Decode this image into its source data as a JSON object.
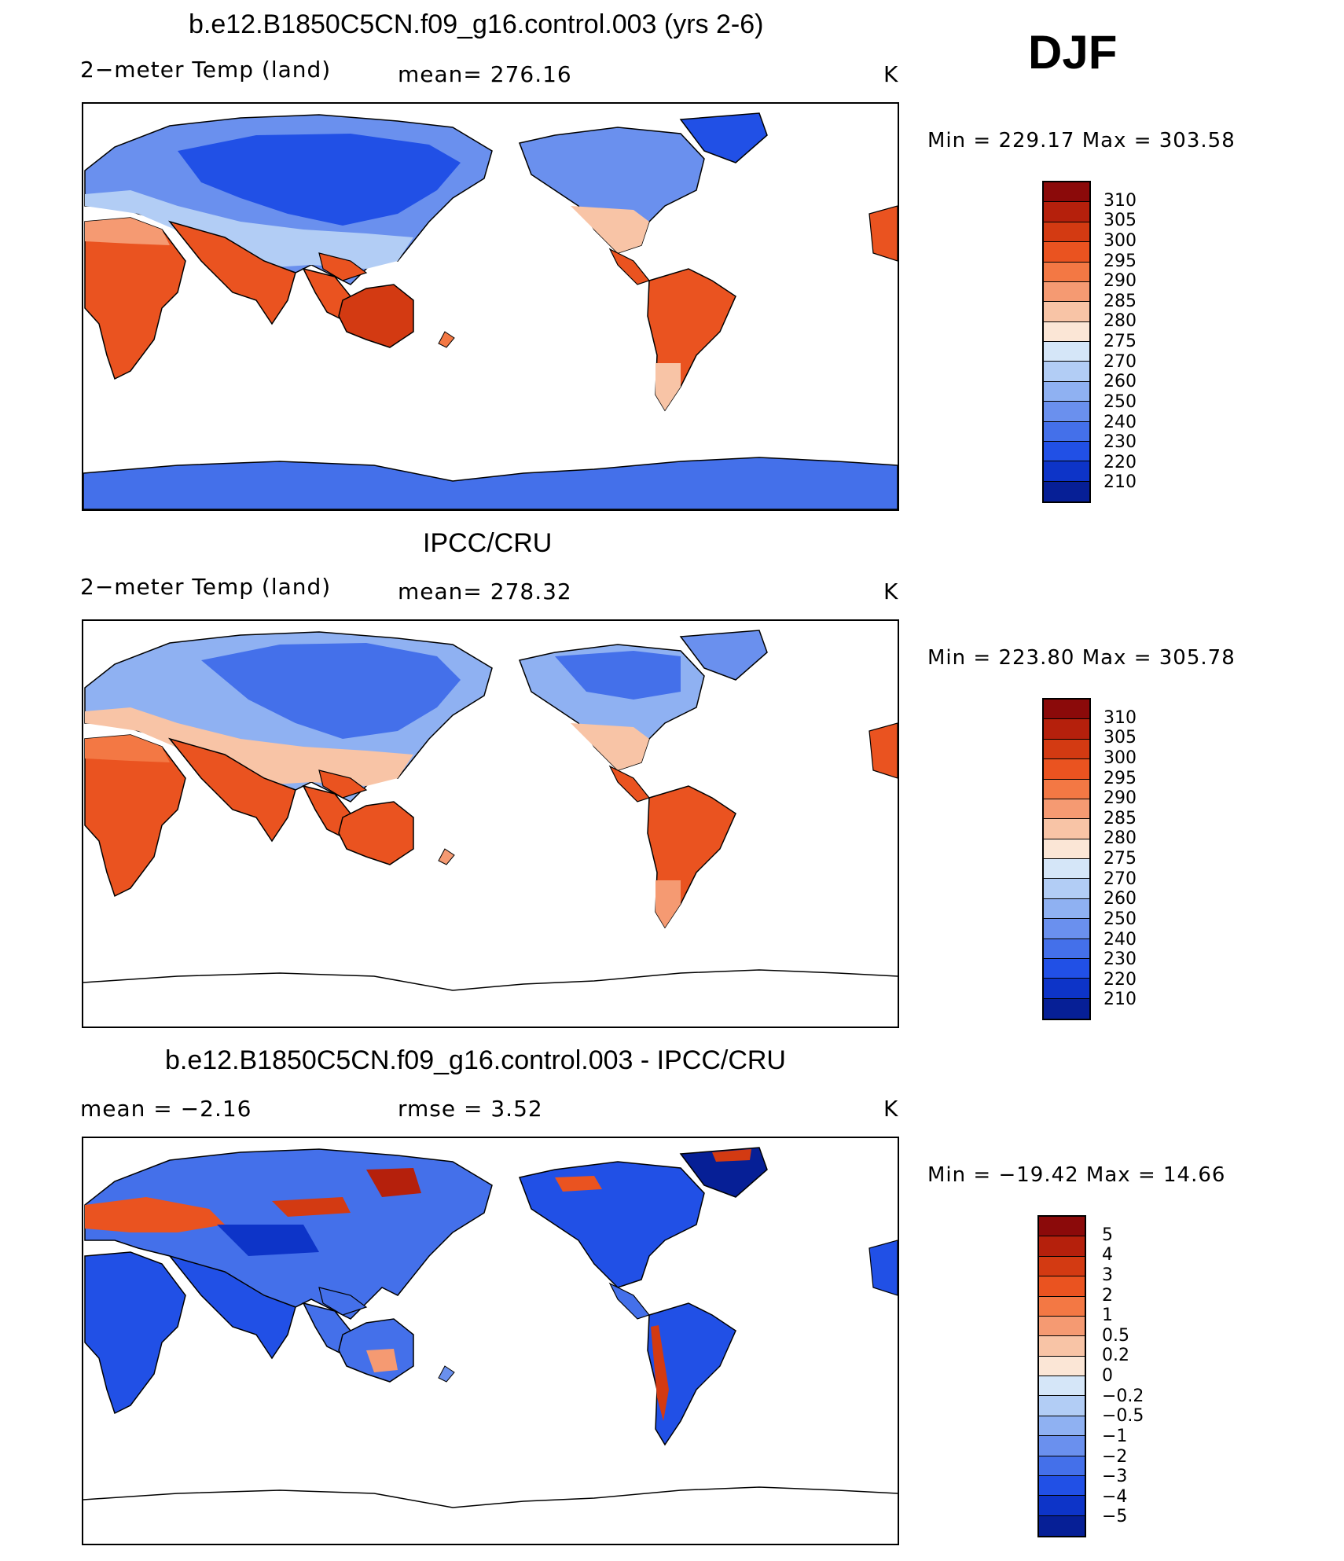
{
  "season": "DJF",
  "panels": [
    {
      "title": "b.e12.B1850C5CN.f09_g16.control.003 (yrs 2-6)",
      "left_text": "2−meter Temp (land)",
      "center_text": "mean= 276.16",
      "units": "K",
      "minmax": "Min = 229.17 Max = 303.58",
      "colorbar": {
        "labels": [
          "310",
          "305",
          "300",
          "295",
          "290",
          "285",
          "280",
          "275",
          "270",
          "260",
          "250",
          "240",
          "230",
          "220",
          "210"
        ],
        "colors": [
          "#8b0a0a",
          "#b5200c",
          "#d33a12",
          "#ea5320",
          "#f37844",
          "#f59a72",
          "#f8c4a6",
          "#fbe6d6",
          "#d5e6f8",
          "#b2cdf5",
          "#8fb1f2",
          "#6a90ee",
          "#4470ea",
          "#2150e6",
          "#0d34c8",
          "#061f96"
        ]
      }
    },
    {
      "title": "IPCC/CRU",
      "left_text": "2−meter Temp (land)",
      "center_text": "mean= 278.32",
      "units": "K",
      "minmax": "Min = 223.80 Max = 305.78",
      "colorbar": {
        "labels": [
          "310",
          "305",
          "300",
          "295",
          "290",
          "285",
          "280",
          "275",
          "270",
          "260",
          "250",
          "240",
          "230",
          "220",
          "210"
        ],
        "colors": [
          "#8b0a0a",
          "#b5200c",
          "#d33a12",
          "#ea5320",
          "#f37844",
          "#f59a72",
          "#f8c4a6",
          "#fbe6d6",
          "#d5e6f8",
          "#b2cdf5",
          "#8fb1f2",
          "#6a90ee",
          "#4470ea",
          "#2150e6",
          "#0d34c8",
          "#061f96"
        ]
      }
    },
    {
      "title": "b.e12.B1850C5CN.f09_g16.control.003 - IPCC/CRU",
      "left_text": "mean = −2.16",
      "center_text": "rmse = 3.52",
      "units": "K",
      "minmax": "Min = −19.42 Max = 14.66",
      "colorbar": {
        "labels": [
          "5",
          "4",
          "3",
          "2",
          "1",
          "0.5",
          "0.2",
          "0",
          "−0.2",
          "−0.5",
          "−1",
          "−2",
          "−3",
          "−4",
          "−5"
        ],
        "colors": [
          "#8b0a0a",
          "#b5200c",
          "#d33a12",
          "#ea5320",
          "#f37844",
          "#f59a72",
          "#f8c4a6",
          "#fbe6d6",
          "#d5e6f8",
          "#b2cdf5",
          "#8fb1f2",
          "#6a90ee",
          "#4470ea",
          "#2150e6",
          "#0d34c8",
          "#061f96"
        ]
      }
    }
  ]
}
